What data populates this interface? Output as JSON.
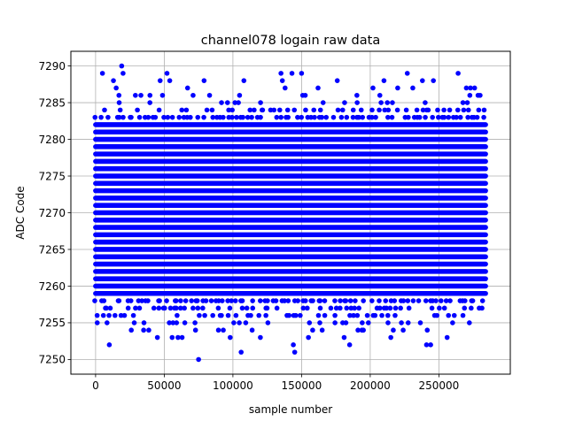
{
  "chart_data": {
    "type": "scatter",
    "title": "channel078 logain raw data",
    "xlabel": "sample number",
    "ylabel": "ADC Code",
    "xlim": [
      -18000,
      302000
    ],
    "ylim": [
      7248.0,
      7292.0
    ],
    "x_ticks": [
      0,
      50000,
      100000,
      150000,
      200000,
      250000
    ],
    "x_tick_labels": [
      "0",
      "50000",
      "100000",
      "150000",
      "200000",
      "250000"
    ],
    "y_ticks": [
      7250,
      7255,
      7260,
      7265,
      7270,
      7275,
      7280,
      7285,
      7290
    ],
    "y_tick_labels": [
      "7250",
      "7255",
      "7260",
      "7265",
      "7270",
      "7275",
      "7280",
      "7285",
      "7290"
    ],
    "grid": true,
    "marker_color": "#0000ff",
    "band": {
      "x_start": 0,
      "x_end": 284000,
      "y_min": 7259,
      "y_max": 7282
    },
    "outliers": [
      [
        5000,
        7289
      ],
      [
        10000,
        7252
      ],
      [
        13000,
        7288
      ],
      [
        15000,
        7287
      ],
      [
        17000,
        7286
      ],
      [
        19000,
        7290
      ],
      [
        20000,
        7289
      ],
      [
        26000,
        7254
      ],
      [
        29000,
        7286
      ],
      [
        33000,
        7286
      ],
      [
        45000,
        7253
      ],
      [
        47000,
        7288
      ],
      [
        52000,
        7289
      ],
      [
        54000,
        7288
      ],
      [
        60000,
        7253
      ],
      [
        63000,
        7253
      ],
      [
        67000,
        7287
      ],
      [
        71000,
        7286
      ],
      [
        75000,
        7250
      ],
      [
        79000,
        7288
      ],
      [
        83000,
        7286
      ],
      [
        93000,
        7254
      ],
      [
        98000,
        7253
      ],
      [
        106000,
        7251
      ],
      [
        108000,
        7288
      ],
      [
        114000,
        7254
      ],
      [
        120000,
        7253
      ],
      [
        135000,
        7289
      ],
      [
        136000,
        7288
      ],
      [
        138000,
        7287
      ],
      [
        143000,
        7289
      ],
      [
        144000,
        7252
      ],
      [
        145000,
        7251
      ],
      [
        150000,
        7289
      ],
      [
        155000,
        7253
      ],
      [
        162000,
        7287
      ],
      [
        165000,
        7254
      ],
      [
        176000,
        7288
      ],
      [
        181000,
        7253
      ],
      [
        185000,
        7252
      ],
      [
        195000,
        7254
      ],
      [
        202000,
        7287
      ],
      [
        207000,
        7286
      ],
      [
        210000,
        7288
      ],
      [
        215000,
        7253
      ],
      [
        220000,
        7287
      ],
      [
        224000,
        7254
      ],
      [
        227000,
        7289
      ],
      [
        231000,
        7287
      ],
      [
        238000,
        7288
      ],
      [
        241000,
        7252
      ],
      [
        244000,
        7252
      ],
      [
        246000,
        7288
      ],
      [
        256000,
        7253
      ],
      [
        264000,
        7289
      ],
      [
        270000,
        7287
      ],
      [
        273000,
        7287
      ],
      [
        276000,
        7287
      ],
      [
        280000,
        7286
      ]
    ]
  }
}
